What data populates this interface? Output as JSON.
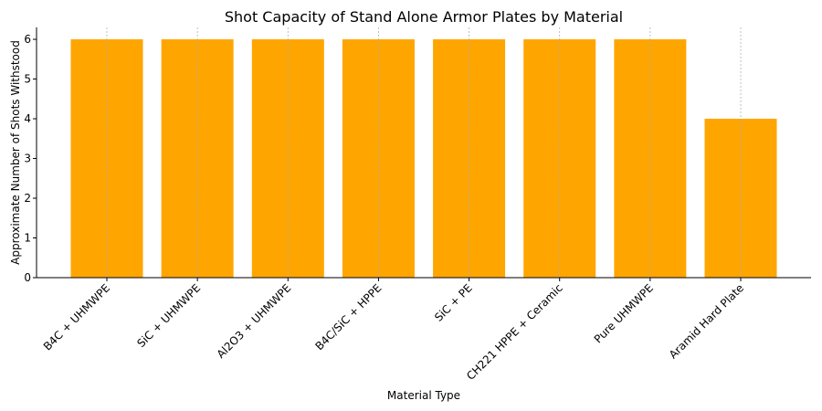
{
  "chart_data": {
    "type": "bar",
    "title": "Shot Capacity of Stand Alone Armor Plates by Material",
    "xlabel": "Material Type",
    "ylabel": "Approximate Number of Shots Withstood",
    "categories": [
      "B4C + UHMWPE",
      "SiC + UHMWPE",
      "Al2O3 + UHMWPE",
      "B4C/SiC + HPPE",
      "SiC + PE",
      "CH221 HPPE + Ceramic",
      "Pure UHMWPE",
      "Aramid Hard Plate"
    ],
    "values": [
      6,
      6,
      6,
      6,
      6,
      6,
      6,
      4
    ],
    "ylim": [
      0,
      6.3
    ],
    "yticks": [
      0,
      1,
      2,
      3,
      4,
      5,
      6
    ],
    "grid": "x",
    "bar_color": "#ffa500"
  }
}
